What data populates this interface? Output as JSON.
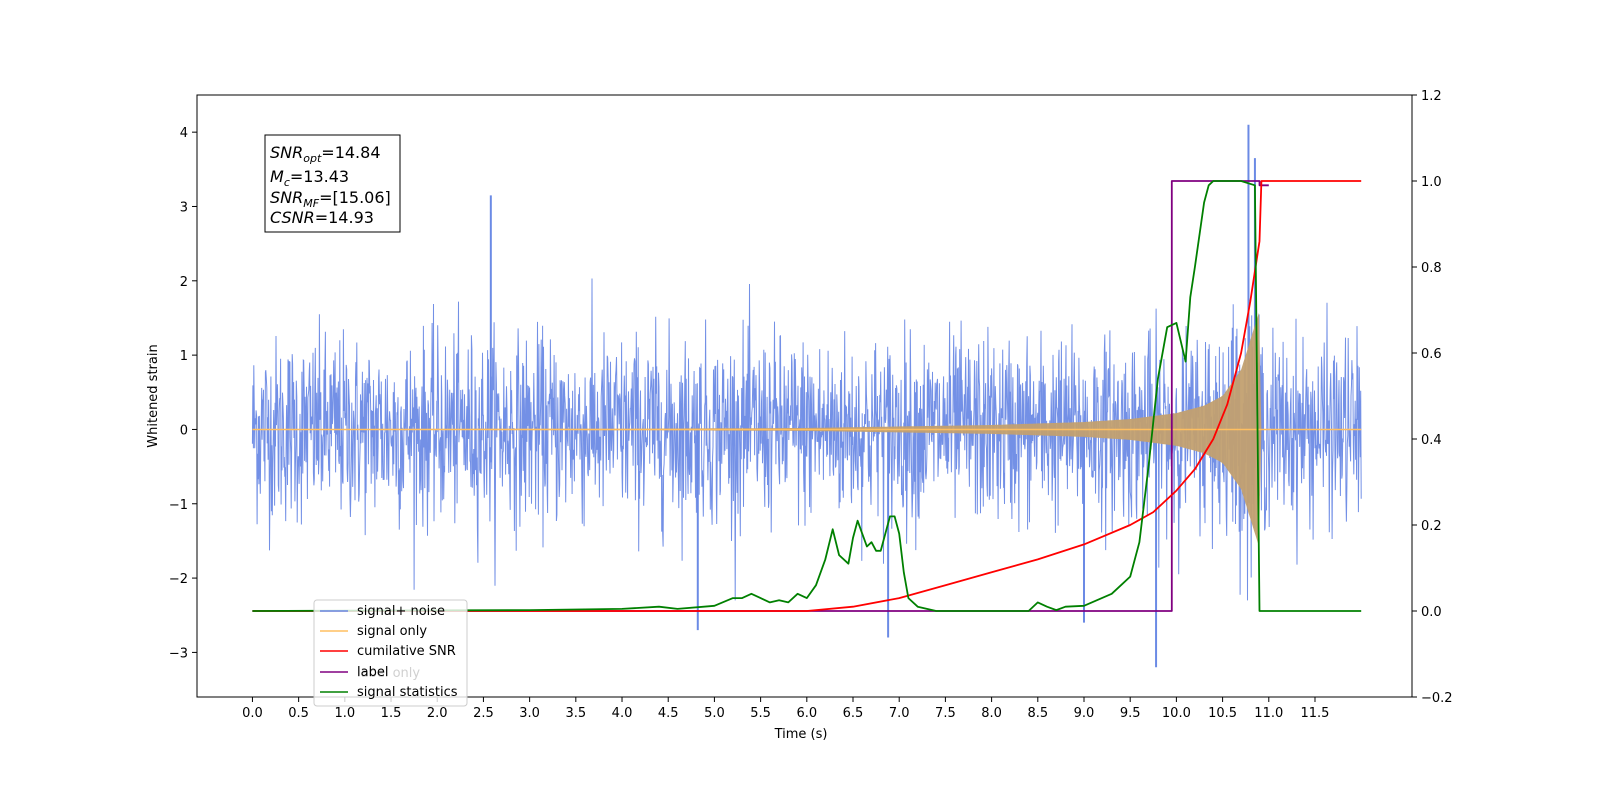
{
  "chart_data": {
    "type": "line",
    "xlabel": "Time (s)",
    "ylabel": "Whitened strain",
    "xlim": [
      -0.6,
      12.55
    ],
    "ylim": [
      -3.6,
      4.5
    ],
    "y2lim": [
      -0.2,
      1.2
    ],
    "xticks": [
      "0.0",
      "0.5",
      "1.0",
      "1.5",
      "2.0",
      "2.5",
      "3.0",
      "3.5",
      "4.0",
      "4.5",
      "5.0",
      "5.5",
      "6.0",
      "6.5",
      "7.0",
      "7.5",
      "8.0",
      "8.5",
      "9.0",
      "9.5",
      "10.0",
      "10.5",
      "11.0",
      "11.5"
    ],
    "yticks": [
      "−3",
      "−2",
      "−1",
      "0",
      "1",
      "2",
      "3",
      "4"
    ],
    "y2ticks": [
      "−0.2",
      "0.0",
      "0.2",
      "0.4",
      "0.6",
      "0.8",
      "1.0",
      "1.2"
    ],
    "grid": false,
    "legend": {
      "position": "lower-left",
      "entries": [
        {
          "label": "signal+ noise",
          "color": "#6b8ae5"
        },
        {
          "label": "signal only",
          "color": "#ffbf60"
        },
        {
          "label": "cumilative SNR",
          "color": "#ff0000"
        },
        {
          "label": "label",
          "color": "#800080"
        },
        {
          "label": "signal statistics",
          "color": "#008000"
        }
      ],
      "hidden_text": "label only"
    },
    "annotation": {
      "snr_opt": "14.84",
      "mc": "13.43",
      "snr_mf": "[15.06]",
      "csnr": "14.93"
    },
    "series": [
      {
        "name": "signal+ noise",
        "axis": "left",
        "color": "#6b8ae5",
        "noise_band": [
          -1.3,
          1.3
        ],
        "notable_spikes": [
          [
            2.58,
            3.15
          ],
          [
            4.82,
            -2.7
          ],
          [
            6.88,
            -2.8
          ],
          [
            9.0,
            -2.6
          ],
          [
            9.78,
            -3.2
          ],
          [
            10.78,
            4.1
          ],
          [
            10.85,
            3.65
          ]
        ]
      },
      {
        "name": "signal only",
        "axis": "left",
        "color": "#ffbf60",
        "chirp_envelope": [
          [
            0.0,
            0.005
          ],
          [
            4.0,
            0.01
          ],
          [
            6.0,
            0.02
          ],
          [
            7.0,
            0.04
          ],
          [
            8.0,
            0.06
          ],
          [
            9.0,
            0.1
          ],
          [
            9.5,
            0.14
          ],
          [
            10.0,
            0.22
          ],
          [
            10.3,
            0.32
          ],
          [
            10.5,
            0.45
          ],
          [
            10.7,
            0.8
          ],
          [
            10.8,
            1.2
          ],
          [
            10.9,
            1.6
          ],
          [
            10.92,
            0.0
          ]
        ]
      },
      {
        "name": "cumilative SNR",
        "axis": "right",
        "color": "#ff0000",
        "x": [
          0.0,
          6.0,
          6.5,
          7.0,
          7.5,
          8.0,
          8.5,
          9.0,
          9.5,
          9.75,
          10.0,
          10.2,
          10.4,
          10.55,
          10.7,
          10.8,
          10.9,
          10.92,
          12.0
        ],
        "values": [
          0.0,
          0.0,
          0.01,
          0.03,
          0.06,
          0.09,
          0.12,
          0.155,
          0.2,
          0.23,
          0.28,
          0.33,
          0.4,
          0.48,
          0.6,
          0.72,
          0.86,
          1.0,
          1.0
        ]
      },
      {
        "name": "label",
        "axis": "right",
        "color": "#800080",
        "x": [
          0.0,
          9.95,
          9.95,
          10.9,
          10.9,
          11.0
        ],
        "values": [
          0.0,
          0.0,
          1.0,
          1.0,
          0.99,
          0.99
        ]
      },
      {
        "name": "signal statistics",
        "axis": "right",
        "color": "#008000",
        "x": [
          0.0,
          3.0,
          4.0,
          4.4,
          4.6,
          5.0,
          5.2,
          5.3,
          5.4,
          5.5,
          5.6,
          5.7,
          5.8,
          5.9,
          6.0,
          6.1,
          6.2,
          6.28,
          6.35,
          6.45,
          6.5,
          6.55,
          6.6,
          6.65,
          6.7,
          6.75,
          6.8,
          6.9,
          6.95,
          7.0,
          7.05,
          7.1,
          7.2,
          7.4,
          7.6,
          8.0,
          8.4,
          8.5,
          8.6,
          8.7,
          8.8,
          9.0,
          9.3,
          9.4,
          9.5,
          9.6,
          9.7,
          9.8,
          9.9,
          10.0,
          10.1,
          10.15,
          10.2,
          10.3,
          10.35,
          10.4,
          10.5,
          10.7,
          10.85,
          10.9,
          10.93,
          12.0
        ],
        "values": [
          0.0,
          0.002,
          0.005,
          0.01,
          0.005,
          0.012,
          0.03,
          0.03,
          0.04,
          0.03,
          0.02,
          0.025,
          0.02,
          0.04,
          0.03,
          0.06,
          0.12,
          0.19,
          0.13,
          0.11,
          0.17,
          0.21,
          0.18,
          0.15,
          0.16,
          0.14,
          0.14,
          0.22,
          0.22,
          0.18,
          0.09,
          0.03,
          0.01,
          0.0,
          0.0,
          0.0,
          0.0,
          0.02,
          0.01,
          0.002,
          0.01,
          0.012,
          0.04,
          0.06,
          0.08,
          0.16,
          0.34,
          0.54,
          0.66,
          0.67,
          0.58,
          0.73,
          0.8,
          0.95,
          0.99,
          1.0,
          1.0,
          1.0,
          0.99,
          0.0,
          0.0,
          0.0
        ]
      }
    ]
  }
}
